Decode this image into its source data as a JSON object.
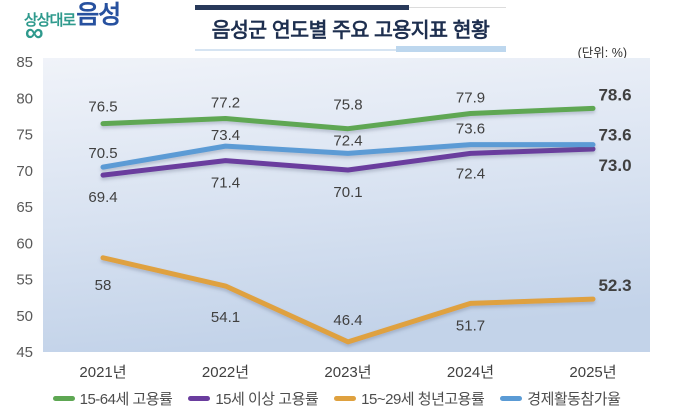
{
  "logo": {
    "part1": "상상대로",
    "part2": "음성",
    "infinity": "∞"
  },
  "header": {
    "title": "음성군 연도별 주요 고용지표 현황",
    "unit": "(단위: %)"
  },
  "chart_data": {
    "type": "line",
    "title": "음성군 연도별 주요 고용지표 현황",
    "unit": "(단위: %)",
    "categories": [
      "2021년",
      "2022년",
      "2023년",
      "2024년",
      "2025년"
    ],
    "yticks": [
      85,
      80,
      75,
      70,
      65,
      60,
      55,
      50,
      45
    ],
    "ylim": [
      45,
      85
    ],
    "grid": false,
    "legend_position": "bottom",
    "label_color": "#404040",
    "axis_label_color": "#595959",
    "final_value_color": "#c03a3c",
    "series": [
      {
        "name": "15-64세 고용률",
        "color": "#5ea753",
        "values": [
          76.5,
          77.2,
          75.8,
          77.9,
          78.6
        ],
        "labels": [
          "76.5",
          "77.2",
          "75.8",
          "77.9",
          "78.6"
        ],
        "label_dy": [
          -17,
          -16,
          -24,
          -16,
          -14
        ]
      },
      {
        "name": "15세 이상 고용률",
        "color": "#6a3d9e",
        "values": [
          69.4,
          71.4,
          70.1,
          72.4,
          73.0
        ],
        "labels": [
          "69.4",
          "71.4",
          "70.1",
          "72.4",
          "73.0"
        ],
        "label_dy": [
          22,
          22,
          22,
          20,
          16
        ]
      },
      {
        "name": "15~29세 청년고용률",
        "color": "#dfa13f",
        "values": [
          58,
          54.1,
          46.4,
          51.7,
          52.3
        ],
        "labels": [
          "58",
          "54.1",
          "46.4",
          "51.7",
          "52.3"
        ],
        "label_dy": [
          27,
          31,
          -22,
          22,
          -14
        ]
      },
      {
        "name": "경제활동참가율",
        "color": "#5b9bd5",
        "values": [
          70.5,
          73.4,
          72.4,
          73.6,
          73.6
        ],
        "labels": [
          "70.5",
          "73.4",
          "72.4",
          "73.6",
          "73.6"
        ],
        "label_dy": [
          -14,
          -11,
          -13,
          -16,
          -10
        ]
      }
    ]
  }
}
